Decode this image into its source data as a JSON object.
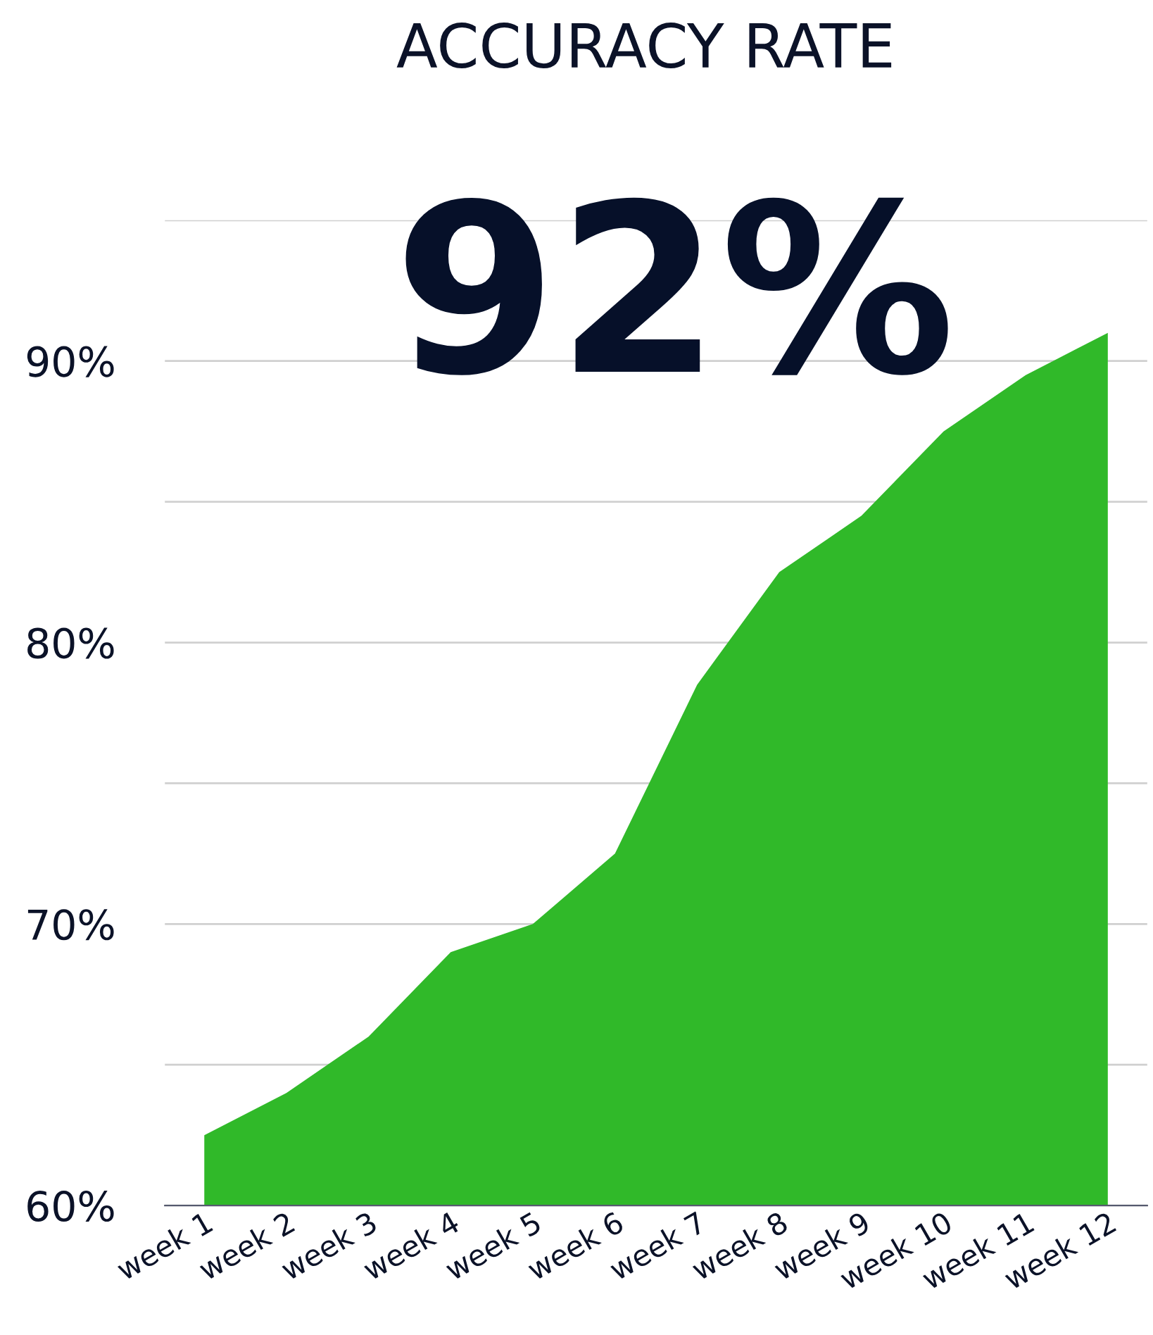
{
  "chart_data": {
    "type": "area",
    "title": "ACCURACY RATE",
    "annotations": [
      "92%"
    ],
    "categories": [
      "week 1",
      "week 2",
      "week 3",
      "week 4",
      "week 5",
      "week 6",
      "week 7",
      "week 8",
      "week 9",
      "week 10",
      "week 11",
      "week 12"
    ],
    "values": [
      62.5,
      64.0,
      66.0,
      69.0,
      70.0,
      72.5,
      78.5,
      82.5,
      84.5,
      87.5,
      89.5,
      91.0
    ],
    "color": "#30b929",
    "ylim": [
      60,
      95
    ],
    "yticks": [
      {
        "value": 60,
        "label": "60%"
      },
      {
        "value": 65,
        "label": null
      },
      {
        "value": 70,
        "label": "70%"
      },
      {
        "value": 75,
        "label": null
      },
      {
        "value": 80,
        "label": "80%"
      },
      {
        "value": 85,
        "label": null
      },
      {
        "value": 90,
        "label": "90%"
      },
      {
        "value": 95,
        "label": null
      }
    ],
    "grid": "y"
  }
}
